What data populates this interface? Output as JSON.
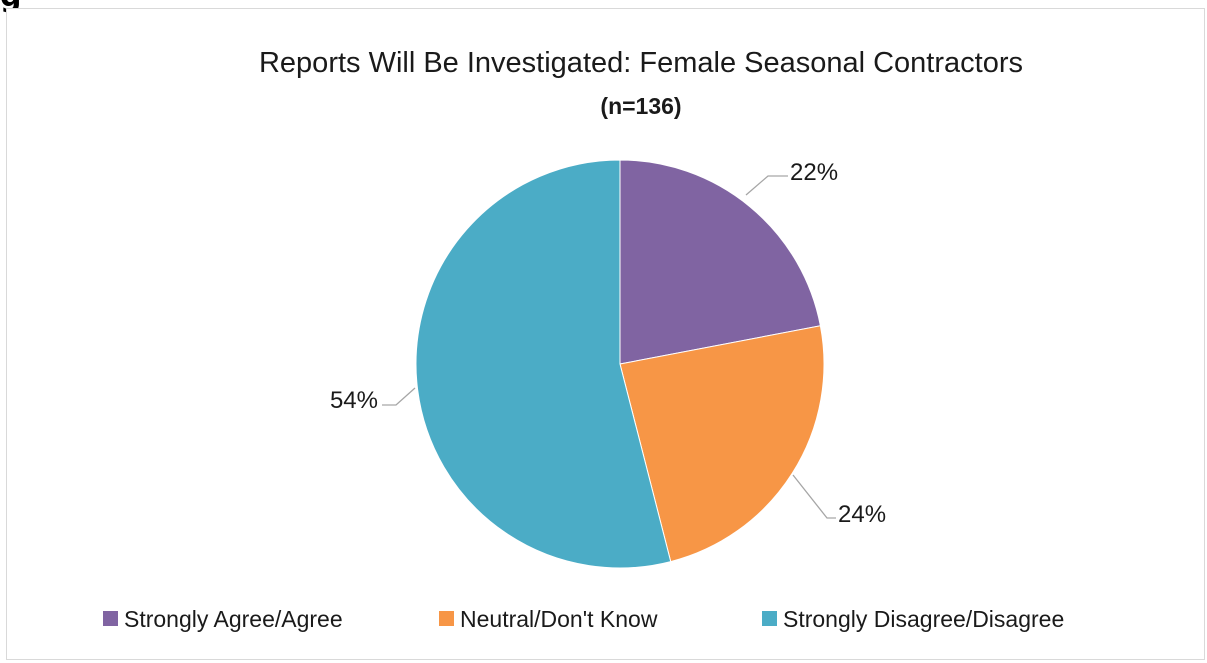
{
  "figure_label": "g",
  "chart_data": {
    "type": "pie",
    "title": "Reports Will Be Investigated: Female Seasonal Contractors",
    "subtitle": "(n=136)",
    "slices": [
      {
        "name": "Strongly Agree/Agree",
        "value": 22,
        "label": "22%",
        "color": "#8064a2"
      },
      {
        "name": "Neutral/Don't Know",
        "value": 24,
        "label": "24%",
        "color": "#f79646"
      },
      {
        "name": "Strongly Disagree/Disagree",
        "value": 54,
        "label": "54%",
        "color": "#4bacc6"
      }
    ],
    "legend_position": "bottom",
    "start_angle": "12 o'clock",
    "direction": "clockwise"
  }
}
